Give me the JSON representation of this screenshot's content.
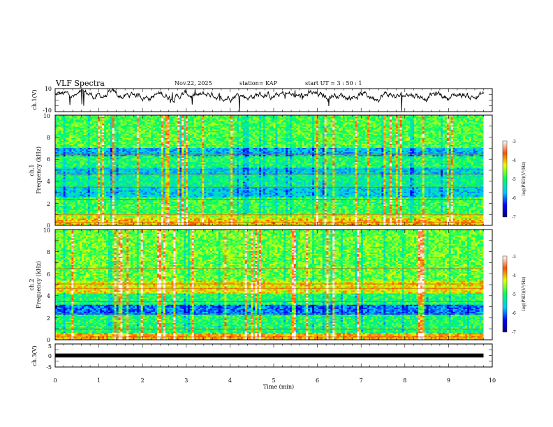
{
  "header": {
    "title": "VLF Spectra",
    "date": "Nov.22, 2025",
    "station": "station= KAP",
    "start": "start  UT =   3  : 50 : 1"
  },
  "chart_data": {
    "type": "spectrogram",
    "x_axis": {
      "label": "Time  (min)",
      "range": [
        0,
        10
      ],
      "ticks": [
        "0",
        "1",
        "2",
        "3",
        "4",
        "5",
        "6",
        "7",
        "8",
        "9",
        "10"
      ],
      "data_end": 9.8
    },
    "panels": [
      {
        "name": "ch1-waveform",
        "type": "line",
        "ylabel": "ch.1(V)",
        "ylim": [
          -10,
          10
        ],
        "yticks": [
          "10",
          "-10"
        ],
        "mean": 4,
        "noise_amplitude": 4
      },
      {
        "name": "ch1-spectrogram",
        "type": "heatmap",
        "ylabel": "ch.1\nFrequency  (kHz)",
        "ylabel_lines": [
          "ch.1",
          "Frequency  (kHz)"
        ],
        "ylim": [
          0,
          10
        ],
        "yticks": [
          "0",
          "2",
          "4",
          "6",
          "8",
          "10"
        ],
        "colorbar": {
          "label": "log(PSD)(V²/Hz)",
          "range": [
            -7,
            -3
          ],
          "ticks": [
            "-3",
            "-4",
            "-5",
            "-6",
            "-7"
          ]
        },
        "bands": [
          {
            "f_low": 0.0,
            "f_high": 0.6,
            "level": -4.0
          },
          {
            "f_low": 0.6,
            "f_high": 1.0,
            "level": -4.4
          },
          {
            "f_low": 1.0,
            "f_high": 2.5,
            "level": -4.9
          },
          {
            "f_low": 2.5,
            "f_high": 3.4,
            "level": -5.6
          },
          {
            "f_low": 3.4,
            "f_high": 4.6,
            "level": -5.2
          },
          {
            "f_low": 4.6,
            "f_high": 5.2,
            "level": -5.6
          },
          {
            "f_low": 5.2,
            "f_high": 6.2,
            "level": -5.0
          },
          {
            "f_low": 6.2,
            "f_high": 7.0,
            "level": -5.7
          },
          {
            "f_low": 7.0,
            "f_high": 10.0,
            "level": -4.8
          }
        ]
      },
      {
        "name": "ch2-spectrogram",
        "type": "heatmap",
        "ylabel": "ch.2\nFrequency  (kHz)",
        "ylabel_lines": [
          "ch.2",
          "Frequency  (kHz)"
        ],
        "ylim": [
          0,
          10
        ],
        "yticks": [
          "0",
          "2",
          "4",
          "6",
          "8",
          "10"
        ],
        "colorbar": {
          "label": "log(PSD)(V²/Hz)",
          "range": [
            -7,
            -3
          ],
          "ticks": [
            "-3",
            "-4",
            "-5",
            "-6",
            "-7"
          ]
        },
        "bands": [
          {
            "f_low": 0.0,
            "f_high": 0.6,
            "level": -3.9
          },
          {
            "f_low": 0.6,
            "f_high": 2.3,
            "level": -5.0
          },
          {
            "f_low": 2.3,
            "f_high": 3.2,
            "level": -6.0
          },
          {
            "f_low": 3.2,
            "f_high": 4.2,
            "level": -5.0
          },
          {
            "f_low": 4.2,
            "f_high": 5.3,
            "level": -4.2
          },
          {
            "f_low": 5.3,
            "f_high": 10.0,
            "level": -4.7
          }
        ]
      },
      {
        "name": "ch3-waveform",
        "type": "line",
        "ylabel": "ch.3(V)",
        "ylim": [
          -5,
          5
        ],
        "yticks": [
          "5",
          "0",
          "-5"
        ],
        "mean": 0,
        "noise_amplitude": 0.4
      }
    ]
  }
}
